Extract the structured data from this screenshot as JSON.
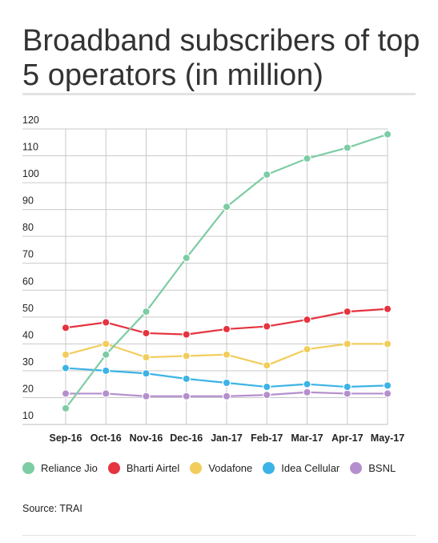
{
  "title": "Broadband subscribers of top 5 operators (in million)",
  "source": "Source: TRAI",
  "chart_data": {
    "type": "line",
    "title": "Broadband subscribers of top 5 operators (in million)",
    "xlabel": "",
    "ylabel": "",
    "categories": [
      "Sep-16",
      "Oct-16",
      "Nov-16",
      "Dec-16",
      "Jan-17",
      "Feb-17",
      "Mar-17",
      "Apr-17",
      "May-17"
    ],
    "ylim": [
      10,
      120
    ],
    "yticks": [
      10,
      20,
      30,
      40,
      50,
      60,
      70,
      80,
      90,
      100,
      110,
      120
    ],
    "grid": true,
    "legend": "bottom",
    "series": [
      {
        "name": "Reliance Jio",
        "color": "#7ccca4",
        "values": [
          16,
          36,
          52,
          72,
          91,
          103,
          109,
          113,
          118
        ]
      },
      {
        "name": "Bharti Airtel",
        "color": "#e5333f",
        "values": [
          46,
          48,
          44,
          43.5,
          45.5,
          46.5,
          49,
          52,
          53
        ]
      },
      {
        "name": "Vodafone",
        "color": "#f2cd5c",
        "values": [
          36,
          40,
          35,
          35.5,
          36,
          32,
          38,
          40,
          40
        ]
      },
      {
        "name": "Idea Cellular",
        "color": "#3cb3e6",
        "values": [
          31,
          30,
          29,
          27,
          25.5,
          24,
          25,
          24,
          24.5
        ]
      },
      {
        "name": "BSNL",
        "color": "#b48fcd",
        "values": [
          21.5,
          21.5,
          20.5,
          20.5,
          20.5,
          21,
          22,
          21.5,
          21.5
        ]
      }
    ]
  }
}
